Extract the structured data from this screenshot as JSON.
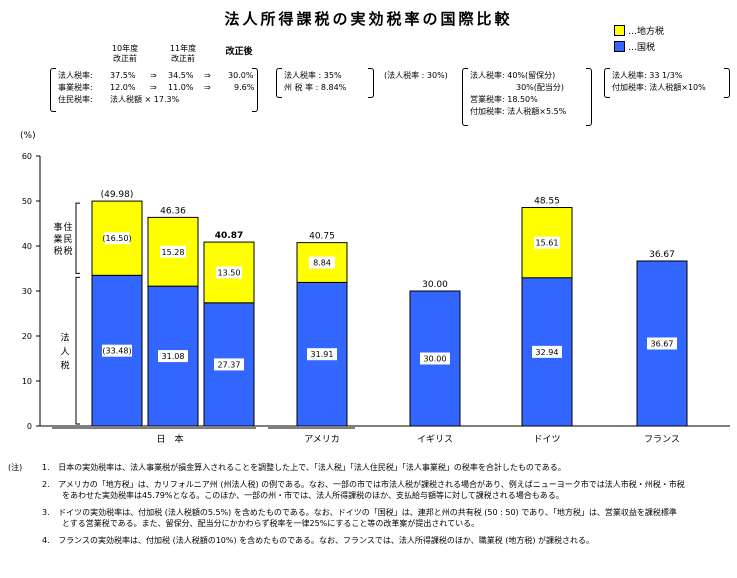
{
  "title": "法人所得課税の実効税率の国際比較",
  "legend": [
    {
      "label": "…地方税",
      "color": "#ffff00"
    },
    {
      "label": "…国税",
      "color": "#3366ff"
    }
  ],
  "japan_header": {
    "col1": [
      "10年度",
      "改正前"
    ],
    "col2": [
      "11年度",
      "改正前"
    ],
    "col3": "改正後"
  },
  "japan_rates": [
    {
      "label": "法人税率:",
      "v1": "37.5%",
      "arrow1": "⇒",
      "v2": "34.5%",
      "arrow2": "⇒",
      "v3": "30.0%"
    },
    {
      "label": "事業税率:",
      "v1": "12.0%",
      "arrow1": "⇒",
      "v2": "11.0%",
      "arrow2": "⇒",
      "v3": "9.6%"
    },
    {
      "label": "住民税率:",
      "v1": "法人税額 × 17.3%",
      "arrow1": "",
      "v2": "",
      "arrow2": "",
      "v3": ""
    }
  ],
  "usa_rates": [
    "法人税率 : 35%",
    "州 税 率 : 8.84%"
  ],
  "uk_rates": [
    "(法人税率 : 30%)"
  ],
  "germany_rates": [
    "法人税率: 40%(留保分)",
    "30%(配当分)",
    "営業税率: 18.50%",
    "付加税率: 法人税額×5.5%"
  ],
  "france_rates": [
    "法人税率: 33 1/3%",
    "付加税率: 法人税額×10%"
  ],
  "chart_data": {
    "type": "bar",
    "stacked": true,
    "unit_label": "(%)",
    "ylim": [
      0,
      60
    ],
    "yticks": [
      "0",
      "10",
      "20",
      "30",
      "40",
      "50",
      "60"
    ],
    "x_groups": [
      "日　本",
      "アメリカ",
      "イギリス",
      "ドイツ",
      "フランス"
    ],
    "bars": [
      {
        "group": "日本",
        "national": 33.48,
        "local": 16.5,
        "total": 49.98,
        "national_label": "(33.48)",
        "local_label": "(16.50)",
        "total_label": "(49.98)",
        "total_bold": false
      },
      {
        "group": "日本",
        "national": 31.08,
        "local": 15.28,
        "total": 46.36,
        "national_label": "31.08",
        "local_label": "15.28",
        "total_label": "46.36",
        "total_bold": false
      },
      {
        "group": "日本",
        "national": 27.37,
        "local": 13.5,
        "total": 40.87,
        "national_label": "27.37",
        "local_label": "13.50",
        "total_label": "40.87",
        "total_bold": true
      },
      {
        "group": "アメリカ",
        "national": 31.91,
        "local": 8.84,
        "total": 40.75,
        "national_label": "31.91",
        "local_label": "8.84",
        "total_label": "40.75",
        "total_bold": false
      },
      {
        "group": "イギリス",
        "national": 30.0,
        "local": 0,
        "total": 30.0,
        "national_label": "30.00",
        "local_label": "",
        "total_label": "30.00",
        "total_bold": false
      },
      {
        "group": "ドイツ",
        "national": 32.94,
        "local": 15.61,
        "total": 48.55,
        "national_label": "32.94",
        "local_label": "15.61",
        "total_label": "48.55",
        "total_bold": false
      },
      {
        "group": "フランス",
        "national": 36.67,
        "local": 0,
        "total": 36.67,
        "national_label": "36.67",
        "local_label": "",
        "total_label": "36.67",
        "total_bold": false
      }
    ],
    "side_labels": {
      "local": [
        "事",
        "住",
        "業",
        "民",
        "税",
        "税"
      ],
      "national": [
        "法",
        "人",
        "税"
      ]
    },
    "colors": {
      "national": "#3366ff",
      "local": "#ffff00"
    }
  },
  "notes": {
    "marker": "(注)",
    "items": [
      {
        "num": "1.",
        "lines": [
          "日本の実効税率は、法人事業税が損金算入されることを調整した上で、「法人税」「法人住民税」「法人事業税」の税率を合計したものである。"
        ]
      },
      {
        "num": "2.",
        "lines": [
          "アメリカの「地方税」は、カリフォルニア州 (州法人税) の例である。なお、一部の市では市法人税が課税される場合があり、例えばニューヨーク市では法人市税・州税・市税",
          "をあわせた実効税率は45.79%となる。このほか、一部の州・市では、法人所得課税のほか、支払給与額等に対して課税される場合もある。"
        ]
      },
      {
        "num": "3.",
        "lines": [
          "ドイツの実効税率は、付加税 (法人税額の5.5%) を含めたものである。なお、ドイツの「国税」は、連邦と州の共有税 (50 : 50) であり、「地方税」は、営業収益を課税標準",
          "とする営業税である。また、留保分、配当分にかかわらず税率を一律25%にすること等の改革案が提出されている。"
        ]
      },
      {
        "num": "4.",
        "lines": [
          "フランスの実効税率は、付加税 (法人税額の10%) を含めたものである。なお、フランスでは、法人所得課税のほか、職業税 (地方税) が課税される。"
        ]
      }
    ]
  }
}
